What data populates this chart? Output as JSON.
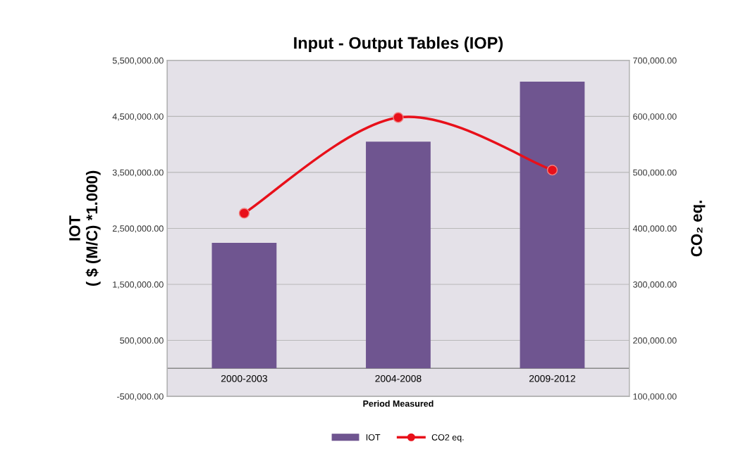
{
  "chart_data": {
    "type": "bar",
    "title": "Input - Output Tables (IOP)",
    "xlabel": "Period Measured",
    "ylabel": "IOT\n( $ (M/C) *1.000)",
    "y2label": "CO₂ eq.",
    "categories": [
      "2000-2003",
      "2004-2008",
      "2009-2012"
    ],
    "series": [
      {
        "name": "IOT",
        "color": "#6f5590",
        "values": [
          2240000,
          4050000,
          5120000
        ]
      },
      {
        "name": "CO2 eq.",
        "type": "line",
        "axis": "y2",
        "color": "#e8101a",
        "marker": "circle",
        "values": [
          427000,
          598000,
          504000
        ]
      }
    ],
    "ylim": [
      -500000,
      5500000
    ],
    "yticks": [
      {
        "value": -500000,
        "label": "-500,000.00"
      },
      {
        "value": 500000,
        "label": "500,000.00"
      },
      {
        "value": 1500000,
        "label": "1,500,000.00"
      },
      {
        "value": 2500000,
        "label": "2,500,000.00"
      },
      {
        "value": 3500000,
        "label": "3,500,000.00"
      },
      {
        "value": 4500000,
        "label": "4,500,000.00"
      },
      {
        "value": 5500000,
        "label": "5,500,000.00"
      }
    ],
    "y2lim": [
      100000,
      700000
    ],
    "y2ticks": [
      {
        "value": 100000,
        "label": "100,000.00"
      },
      {
        "value": 200000,
        "label": "200,000.00"
      },
      {
        "value": 300000,
        "label": "300,000.00"
      },
      {
        "value": 400000,
        "label": "400,000.00"
      },
      {
        "value": 500000,
        "label": "500,000.00"
      },
      {
        "value": 600000,
        "label": "600,000.00"
      },
      {
        "value": 700000,
        "label": "700,000.00"
      }
    ],
    "grid": "y",
    "legend": "bottom"
  }
}
